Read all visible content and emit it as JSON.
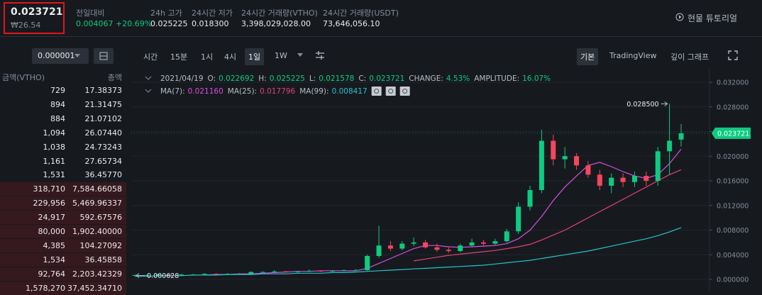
{
  "ticker": {
    "price": "0.023721",
    "krw": "₩26.54",
    "stats": [
      {
        "label": "전일대비",
        "value": "0.004067 +20.69%"
      },
      {
        "label": "24h 고가",
        "value": "0.025225"
      },
      {
        "label": "24시간 저가",
        "value": "0.018300"
      },
      {
        "label": "24시간 거래량(VTHO)",
        "value": "3,398,029,028.00"
      },
      {
        "label": "24시간 거래량(USDT)",
        "value": "73,646,056.10"
      }
    ],
    "tutorial": "현물 튜토리얼"
  },
  "orderbook": {
    "precision": "0.000001",
    "headers": [
      "금액(VTHO)",
      "총액"
    ],
    "rows": [
      [
        "729",
        "17.38373"
      ],
      [
        "894",
        "21.31475"
      ],
      [
        "884",
        "21.07102"
      ],
      [
        "1,094",
        "26.07440"
      ],
      [
        "1,038",
        "24.73243"
      ],
      [
        "1,161",
        "27.65734"
      ],
      [
        "1,531",
        "36.45770"
      ],
      [
        "318,710",
        "7,584.66058"
      ],
      [
        "229,956",
        "5,469.96337"
      ],
      [
        "24,917",
        "592.67576"
      ],
      [
        "80,000",
        "1,902.40000"
      ],
      [
        "4,385",
        "104.27092"
      ],
      [
        "1,534",
        "36.45858"
      ],
      [
        "92,764",
        "2,203.42329"
      ],
      [
        "1,578,270",
        "37,452.34710"
      ]
    ]
  },
  "toolbar": {
    "intervals": [
      "시간",
      "15분",
      "1시",
      "4시",
      "1일",
      "1W"
    ],
    "views": [
      "기본",
      "TradingView",
      "깊이 그래프"
    ]
  },
  "chart_data": {
    "type": "candlestick",
    "header": {
      "date": "2021/04/19",
      "items": [
        {
          "label": "O:",
          "value": "0.022692"
        },
        {
          "label": "H:",
          "value": "0.025225"
        },
        {
          "label": "L:",
          "value": "0.021578"
        },
        {
          "label": "C:",
          "value": "0.023721"
        },
        {
          "label": "CHANGE:",
          "value": "4.53%"
        },
        {
          "label": "AMPLITUDE:",
          "value": "16.07%"
        }
      ]
    },
    "open": [
      0.0006,
      0.0007,
      0.0007,
      0.0008,
      0.0007,
      0.0008,
      0.0008,
      0.0009,
      0.0008,
      0.0009,
      0.0009,
      0.0012,
      0.0012,
      0.0013,
      0.0012,
      0.0013,
      0.0014,
      0.0013,
      0.0014,
      0.0015,
      0.0015,
      0.0038,
      0.0055,
      0.005,
      0.0058,
      0.006,
      0.0052,
      0.0048,
      0.0046,
      0.0055,
      0.006,
      0.0058,
      0.0062,
      0.0078,
      0.0118,
      0.0145,
      0.0225,
      0.0195,
      0.02,
      0.0185,
      0.017,
      0.0152,
      0.0165,
      0.0158,
      0.0168,
      0.016,
      0.0208,
      0.022692
    ],
    "high": [
      0.0008,
      0.0008,
      0.0009,
      0.0009,
      0.0009,
      0.0009,
      0.001,
      0.001,
      0.001,
      0.001,
      0.0013,
      0.0013,
      0.0015,
      0.0014,
      0.0014,
      0.0016,
      0.0015,
      0.0015,
      0.0016,
      0.0017,
      0.004,
      0.0087,
      0.0062,
      0.0062,
      0.0068,
      0.0064,
      0.0058,
      0.0052,
      0.0058,
      0.0066,
      0.0064,
      0.0066,
      0.0082,
      0.0125,
      0.0152,
      0.0243,
      0.0235,
      0.0215,
      0.0205,
      0.0192,
      0.0178,
      0.0172,
      0.0172,
      0.0175,
      0.0175,
      0.0215,
      0.0285,
      0.025225
    ],
    "low": [
      0.000628,
      0.0006,
      0.0006,
      0.0006,
      0.0006,
      0.0007,
      0.0007,
      0.0007,
      0.0007,
      0.0008,
      0.0008,
      0.0011,
      0.0011,
      0.0011,
      0.0011,
      0.0012,
      0.0012,
      0.0012,
      0.0013,
      0.0014,
      0.0014,
      0.0035,
      0.0046,
      0.0047,
      0.0054,
      0.005,
      0.0045,
      0.0043,
      0.0044,
      0.0052,
      0.0055,
      0.0056,
      0.006,
      0.0074,
      0.0112,
      0.014,
      0.0185,
      0.018,
      0.0178,
      0.0165,
      0.0145,
      0.014,
      0.015,
      0.015,
      0.0152,
      0.0152,
      0.017,
      0.021578
    ],
    "close": [
      0.0007,
      0.0007,
      0.0008,
      0.0007,
      0.0008,
      0.0008,
      0.0009,
      0.0008,
      0.0009,
      0.0009,
      0.0012,
      0.0012,
      0.0013,
      0.0012,
      0.0013,
      0.0014,
      0.0013,
      0.0014,
      0.0015,
      0.0015,
      0.0038,
      0.0055,
      0.005,
      0.0058,
      0.006,
      0.0052,
      0.0048,
      0.0046,
      0.0055,
      0.006,
      0.0058,
      0.0062,
      0.0078,
      0.0118,
      0.0145,
      0.0225,
      0.0195,
      0.02,
      0.0185,
      0.017,
      0.0152,
      0.0165,
      0.0158,
      0.0168,
      0.016,
      0.0208,
      0.0225,
      0.023721
    ],
    "up_color": "#0ecb81",
    "down_color": "#f6465d",
    "ma_lines": [
      {
        "name": "MA(7):",
        "legend_value": "0.021160",
        "color": "#d64fe0",
        "values": [
          null,
          null,
          null,
          null,
          null,
          null,
          0.0007,
          0.0008,
          0.0008,
          0.0009,
          0.0009,
          0.001,
          0.0011,
          0.0012,
          0.0013,
          0.0013,
          0.0014,
          0.0014,
          0.0014,
          0.0014,
          0.0018,
          0.0026,
          0.0034,
          0.0042,
          0.005,
          0.0055,
          0.0055,
          0.0053,
          0.0052,
          0.0053,
          0.0054,
          0.0055,
          0.0058,
          0.0066,
          0.008,
          0.0102,
          0.0128,
          0.015,
          0.0168,
          0.0185,
          0.019,
          0.0183,
          0.0175,
          0.0168,
          0.0164,
          0.017,
          0.0188,
          0.02116
        ]
      },
      {
        "name": "MA(25):",
        "legend_value": "0.017796",
        "color": "#e2417a",
        "values": [
          null,
          null,
          null,
          null,
          null,
          null,
          null,
          null,
          null,
          null,
          null,
          null,
          null,
          null,
          null,
          null,
          null,
          null,
          null,
          null,
          null,
          null,
          null,
          null,
          0.003,
          0.0033,
          0.0036,
          0.0039,
          0.0041,
          0.0043,
          0.0045,
          0.0047,
          0.005,
          0.0053,
          0.0057,
          0.0064,
          0.0072,
          0.008,
          0.009,
          0.01,
          0.011,
          0.012,
          0.013,
          0.014,
          0.015,
          0.016,
          0.017,
          0.017796
        ]
      },
      {
        "name": "MA(99):",
        "legend_value": "0.008417",
        "color": "#27c2cf",
        "values": [
          0.0005,
          0.0005,
          0.0006,
          0.0006,
          0.0006,
          0.0007,
          0.0007,
          0.0007,
          0.0008,
          0.0008,
          0.0008,
          0.0009,
          0.0009,
          0.0009,
          0.001,
          0.001,
          0.001,
          0.0011,
          0.0011,
          0.0012,
          0.0013,
          0.0014,
          0.0015,
          0.0016,
          0.0017,
          0.0018,
          0.0019,
          0.002,
          0.0021,
          0.0022,
          0.0023,
          0.0025,
          0.0027,
          0.0029,
          0.0031,
          0.0034,
          0.0037,
          0.004,
          0.0043,
          0.0046,
          0.005,
          0.0054,
          0.0058,
          0.0062,
          0.0066,
          0.0071,
          0.0077,
          0.008417
        ]
      }
    ],
    "ylim": [
      0,
      0.032
    ],
    "yticks": [
      {
        "value": 0,
        "label": "0.000000"
      },
      {
        "value": 0.004,
        "label": "0.004000"
      },
      {
        "value": 0.008,
        "label": "0.008000"
      },
      {
        "value": 0.012,
        "label": "0.012000"
      },
      {
        "value": 0.016,
        "label": "0.016000"
      },
      {
        "value": 0.02,
        "label": "0.020000"
      },
      {
        "value": 0.024,
        "label": "0.024000"
      },
      {
        "value": 0.028,
        "label": "0.028000"
      },
      {
        "value": 0.032,
        "label": "0.032000"
      }
    ],
    "grid": true,
    "high_marker": {
      "value": 0.0285,
      "label": "0.028500"
    },
    "low_marker": {
      "value": 0.000628,
      "label": "0.000628"
    },
    "last_price": {
      "value": 0.023721,
      "label": "0.023721"
    }
  }
}
